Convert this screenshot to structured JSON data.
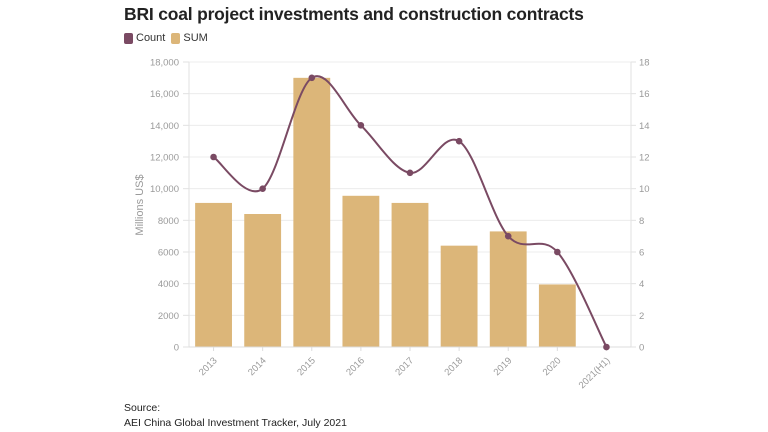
{
  "title": "BRI coal project investments and construction contracts",
  "legend": [
    {
      "label": "Count",
      "color": "#7a4a63"
    },
    {
      "label": "SUM",
      "color": "#dcb679"
    }
  ],
  "source": {
    "label": "Source:",
    "text": "AEI China Global Investment Tracker, July 2021"
  },
  "chart_data": {
    "type": "bar+line",
    "title": "BRI coal project investments and construction contracts",
    "categories": [
      "2013",
      "2014",
      "2015",
      "2016",
      "2017",
      "2018",
      "2019",
      "2020",
      "2021(H1)"
    ],
    "series": [
      {
        "name": "SUM",
        "type": "bar",
        "axis": "left",
        "color": "#dcb679",
        "values": [
          9100,
          8400,
          17000,
          9550,
          9100,
          6400,
          7300,
          3950,
          0
        ]
      },
      {
        "name": "Count",
        "type": "line",
        "axis": "right",
        "color": "#7a4a63",
        "smooth": true,
        "values": [
          12,
          10,
          17,
          14,
          11,
          13,
          7,
          6,
          0
        ]
      }
    ],
    "ylabel": "Millions US$",
    "xlabel": "",
    "ylim": [
      0,
      18000
    ],
    "y2lim": [
      0,
      18
    ],
    "yticks": [
      "0",
      "2000",
      "4000",
      "6000",
      "8000",
      "10,000",
      "12,000",
      "14,000",
      "16,000",
      "18,000"
    ],
    "ytick_values": [
      0,
      2000,
      4000,
      6000,
      8000,
      10000,
      12000,
      14000,
      16000,
      18000
    ],
    "y2ticks": [
      "0",
      "2",
      "4",
      "6",
      "8",
      "10",
      "12",
      "14",
      "16",
      "18"
    ],
    "y2tick_values": [
      0,
      2,
      4,
      6,
      8,
      10,
      12,
      14,
      16,
      18
    ],
    "grid": true,
    "legend_position": "top-left",
    "xtick_rotation": -45
  }
}
